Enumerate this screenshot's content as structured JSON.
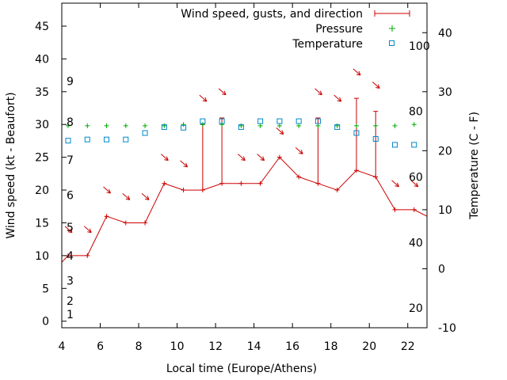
{
  "chart_data": {
    "type": "line",
    "xlabel": "Local time (Europe/Athens)",
    "ylabel": "Wind speed (kt - Beaufort)",
    "y2label": "Temperature (C - F)",
    "xlim": [
      4,
      23
    ],
    "ylim": [
      -1,
      48.5
    ],
    "y2lim": [
      -10,
      45
    ],
    "x_ticks": [
      "4",
      "6",
      "8",
      "10",
      "12",
      "14",
      "16",
      "18",
      "20",
      "22"
    ],
    "y_ticks": [
      "0",
      "5",
      "10",
      "15",
      "20",
      "25",
      "30",
      "35",
      "40",
      "45"
    ],
    "y2_ticks": [
      "-10",
      "0",
      "10",
      "20",
      "30",
      "40"
    ],
    "beaufort_labels": [
      "1",
      "2",
      "3",
      "4",
      "5",
      "6",
      "7",
      "8",
      "9"
    ],
    "fahrenheit_labels": [
      "20",
      "40",
      "60",
      "80",
      "100"
    ],
    "legend": {
      "position": "top-right",
      "entries": [
        "Wind speed, gusts, and direction",
        "Pressure",
        "Temperature"
      ]
    },
    "colors": {
      "wind": "#cc0000",
      "pressure": "#00aa00",
      "temperature": "#0088cc",
      "axis": "#000000"
    },
    "series": [
      {
        "name": "Wind speed, gusts, and direction",
        "x": [
          4,
          4.33,
          5.33,
          6.33,
          7.33,
          8.33,
          9.33,
          10.33,
          11.33,
          12.33,
          13.33,
          14.33,
          15.33,
          16.33,
          17.33,
          18.33,
          19.33,
          20.33,
          21.33,
          22.33,
          23
        ],
        "values": [
          9,
          10,
          10,
          16,
          15,
          15,
          21,
          20,
          20,
          21,
          21,
          21,
          25,
          22,
          21,
          20,
          23,
          22,
          17,
          17,
          16
        ],
        "gusts": [
          null,
          null,
          null,
          null,
          null,
          null,
          null,
          null,
          30,
          31,
          null,
          null,
          null,
          null,
          31,
          null,
          34,
          32,
          null,
          null,
          null
        ]
      },
      {
        "name": "Pressure",
        "x": [
          4.33,
          5.33,
          6.33,
          7.33,
          8.33,
          9.33,
          10.33,
          11.33,
          12.33,
          13.33,
          14.33,
          15.33,
          16.33,
          17.33,
          18.33,
          19.33,
          20.33,
          21.33,
          22.33
        ],
        "values": [
          29.8,
          29.8,
          29.8,
          29.8,
          29.8,
          29.8,
          30.0,
          30.0,
          30.0,
          29.8,
          29.8,
          29.8,
          29.8,
          29.8,
          29.8,
          29.8,
          29.8,
          29.8,
          30.0
        ]
      },
      {
        "name": "Temperature",
        "x": [
          4.33,
          5.33,
          6.33,
          7.33,
          8.33,
          9.33,
          10.33,
          11.33,
          12.33,
          13.33,
          14.33,
          15.33,
          16.33,
          17.33,
          18.33,
          19.33,
          20.33,
          21.33,
          22.33
        ],
        "values": [
          21.7,
          21.9,
          21.9,
          21.9,
          23.0,
          24.0,
          23.9,
          25.0,
          25.0,
          24.0,
          25.0,
          25.0,
          25.0,
          25.0,
          24.0,
          23.0,
          22.0,
          21.0,
          21.0
        ]
      }
    ],
    "direction_arrows": [
      {
        "x": 4.33,
        "y": 14.0
      },
      {
        "x": 5.33,
        "y": 14.0
      },
      {
        "x": 6.33,
        "y": 20.0
      },
      {
        "x": 7.33,
        "y": 19.0
      },
      {
        "x": 8.33,
        "y": 19.0
      },
      {
        "x": 9.33,
        "y": 25.0
      },
      {
        "x": 10.33,
        "y": 24.0
      },
      {
        "x": 11.33,
        "y": 34.0
      },
      {
        "x": 12.33,
        "y": 35.0
      },
      {
        "x": 13.33,
        "y": 25.0
      },
      {
        "x": 14.33,
        "y": 25.0
      },
      {
        "x": 15.33,
        "y": 29.0
      },
      {
        "x": 16.33,
        "y": 26.0
      },
      {
        "x": 17.33,
        "y": 35.0
      },
      {
        "x": 18.33,
        "y": 34.0
      },
      {
        "x": 19.33,
        "y": 38.0
      },
      {
        "x": 20.33,
        "y": 36.0
      },
      {
        "x": 21.33,
        "y": 21.0
      },
      {
        "x": 22.33,
        "y": 21.0
      }
    ]
  }
}
